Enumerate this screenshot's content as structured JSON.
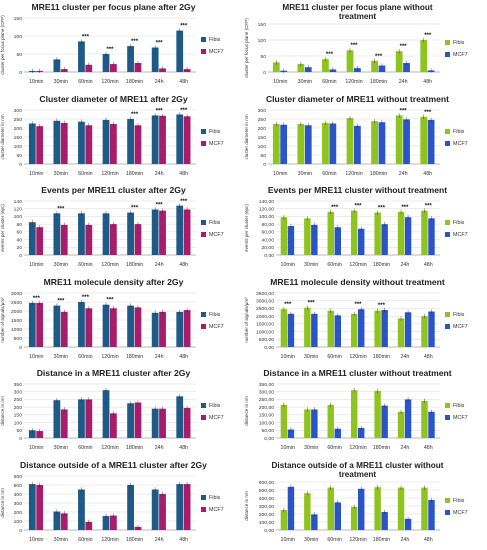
{
  "chart_data": [
    {
      "type": "bar",
      "title": "MRE11 cluster per focus plane after 2Gy",
      "ylabel": "cluster per focus plane (CFP)",
      "categories": [
        "10min",
        "30min",
        "60min",
        "120min",
        "180min",
        "24h",
        "48h"
      ],
      "ylim": [
        0,
        150
      ],
      "yticks": [
        "0",
        "50",
        "100",
        "150"
      ],
      "series": [
        {
          "name": "Fibis",
          "values": [
            3,
            35,
            85,
            50,
            72,
            68,
            115
          ],
          "color": "#1f5a86"
        },
        {
          "name": "MCF7",
          "values": [
            3,
            8,
            20,
            22,
            25,
            10,
            8
          ],
          "color": "#a51d6b"
        }
      ],
      "annotations": [
        "***",
        "***",
        "***",
        "***",
        "***"
      ]
    },
    {
      "type": "bar",
      "title": "MRE11 cluster per focus plane without treatment",
      "ylabel": "cluster per focus plane (CFP)",
      "categories": [
        "10min",
        "30min",
        "60min",
        "120min",
        "180min",
        "24h",
        "48h"
      ],
      "ylim": [
        0,
        150
      ],
      "yticks": [
        "0",
        "50",
        "100",
        "150"
      ],
      "series": [
        {
          "name": "Fibis",
          "values": [
            30,
            25,
            40,
            68,
            35,
            65,
            100
          ],
          "color": "#8fc31f"
        },
        {
          "name": "MCF7",
          "values": [
            4,
            15,
            8,
            12,
            20,
            28,
            5
          ],
          "color": "#2b54c8"
        }
      ],
      "annotations": [
        "***",
        "***",
        "***",
        "***",
        "***"
      ]
    },
    {
      "type": "bar",
      "title": "Cluster diameter of MRE11 after 2Gy",
      "ylabel": "cluster diameter in nm",
      "categories": [
        "10min",
        "30min",
        "60min",
        "120min",
        "180min",
        "24h",
        "48h"
      ],
      "ylim": [
        0,
        300
      ],
      "yticks": [
        "0",
        "50",
        "100",
        "150",
        "200",
        "250",
        "300"
      ],
      "series": [
        {
          "name": "Fibis",
          "values": [
            225,
            240,
            235,
            245,
            250,
            270,
            275
          ],
          "color": "#1f5a86"
        },
        {
          "name": "MCF7",
          "values": [
            210,
            228,
            215,
            222,
            215,
            268,
            265
          ],
          "color": "#a51d6b"
        }
      ],
      "annotations": [
        "***",
        "***",
        "***"
      ]
    },
    {
      "type": "bar",
      "title": "Cluster diameter of MRE11 without treatment",
      "ylabel": "cluster diameter in nm",
      "categories": [
        "10min",
        "30min",
        "60min",
        "120min",
        "180min",
        "24h",
        "48h"
      ],
      "ylim": [
        0,
        300
      ],
      "yticks": [
        "0",
        "50",
        "100",
        "150",
        "200",
        "250",
        "300"
      ],
      "series": [
        {
          "name": "Fibis",
          "values": [
            222,
            222,
            228,
            255,
            238,
            270,
            262
          ],
          "color": "#8fc31f"
        },
        {
          "name": "MCF7",
          "values": [
            218,
            215,
            225,
            212,
            232,
            248,
            245
          ],
          "color": "#2b54c8"
        }
      ],
      "annotations": [
        "***",
        "***"
      ]
    },
    {
      "type": "bar",
      "title": "Events per MRE11 cluster after 2Gy",
      "ylabel": "events per cluster (epc)",
      "categories": [
        "10min",
        "30min",
        "60min",
        "120min",
        "180min",
        "24h",
        "48h"
      ],
      "ylim": [
        0,
        140
      ],
      "yticks": [
        "0",
        "20",
        "40",
        "60",
        "80",
        "100",
        "120",
        "140"
      ],
      "series": [
        {
          "name": "Fibis",
          "values": [
            85,
            108,
            108,
            108,
            110,
            118,
            128
          ],
          "color": "#1f5a86"
        },
        {
          "name": "MCF7",
          "values": [
            72,
            78,
            78,
            80,
            80,
            115,
            118
          ],
          "color": "#a51d6b"
        }
      ],
      "annotations": [
        "***",
        "***",
        "***",
        "***"
      ]
    },
    {
      "type": "bar",
      "title": "Events per MRE11 cluster without treatment",
      "ylabel": "events per cluster (epc)",
      "categories": [
        "10min",
        "30min",
        "60min",
        "120min",
        "180min",
        "24h",
        "48h"
      ],
      "ylim": [
        0,
        140
      ],
      "yticks": [
        "0,00",
        "20,00",
        "40,00",
        "60,00",
        "80,00",
        "100,00",
        "120,00",
        "140,00"
      ],
      "series": [
        {
          "name": "Fibis",
          "values": [
            98,
            95,
            112,
            115,
            110,
            112,
            115
          ],
          "color": "#8fc31f"
        },
        {
          "name": "MCF7",
          "values": [
            75,
            78,
            72,
            68,
            80,
            98,
            95
          ],
          "color": "#2b54c8"
        }
      ],
      "annotations": [
        "***",
        "***",
        "***",
        "***",
        "***"
      ]
    },
    {
      "type": "bar",
      "title": "MRE11 molecule density after 2Gy",
      "ylabel": "number of signals/µm²",
      "categories": [
        "10min",
        "30min",
        "60min",
        "120min",
        "180min",
        "24h",
        "48h"
      ],
      "ylim": [
        0,
        3000
      ],
      "yticks": [
        "0",
        "500",
        "1000",
        "1500",
        "2000",
        "2500",
        "3000"
      ],
      "series": [
        {
          "name": "Fibis",
          "values": [
            2450,
            2300,
            2500,
            2350,
            2300,
            1900,
            1950
          ],
          "color": "#1f5a86"
        },
        {
          "name": "MCF7",
          "values": [
            2450,
            1950,
            2150,
            2150,
            2200,
            1950,
            2050
          ],
          "color": "#a51d6b"
        }
      ],
      "annotations": [
        "***",
        "***",
        "***",
        "***"
      ]
    },
    {
      "type": "bar",
      "title": "MRE11 molecule density without treatment",
      "ylabel": "number of signals/µm²",
      "categories": [
        "10min",
        "30min",
        "60min",
        "120min",
        "180min",
        "24h",
        "48h"
      ],
      "ylim": [
        0,
        3500
      ],
      "yticks": [
        "0,00",
        "500,00",
        "1000,00",
        "1500,00",
        "2000,00",
        "2500,00",
        "3000,00",
        "3500,00"
      ],
      "series": [
        {
          "name": "Fibis",
          "values": [
            2450,
            2550,
            2350,
            2150,
            2350,
            1850,
            2000
          ],
          "color": "#8fc31f"
        },
        {
          "name": "MCF7",
          "values": [
            2150,
            2150,
            2050,
            2450,
            2400,
            2250,
            2300
          ],
          "color": "#2b54c8"
        }
      ],
      "annotations": [
        "***",
        "***",
        "***",
        "***"
      ]
    },
    {
      "type": "bar",
      "title": "Distance in a MRE11 cluster after 2Gy",
      "ylabel": "distance in nm",
      "categories": [
        "10min",
        "30min",
        "60min",
        "120min",
        "180min",
        "24h",
        "48h"
      ],
      "ylim": [
        0,
        350
      ],
      "yticks": [
        "0",
        "50",
        "100",
        "150",
        "200",
        "250",
        "300",
        "350"
      ],
      "series": [
        {
          "name": "Fibis",
          "values": [
            50,
            245,
            250,
            310,
            225,
            190,
            270
          ],
          "color": "#1f5a86"
        },
        {
          "name": "MCF7",
          "values": [
            45,
            185,
            250,
            160,
            230,
            190,
            195
          ],
          "color": "#a51d6b"
        }
      ],
      "annotations": []
    },
    {
      "type": "bar",
      "title": "Distance in a MRE11 cluster without treatment",
      "ylabel": "distance in nm",
      "categories": [
        "10min",
        "30min",
        "60min",
        "120min",
        "180min",
        "24h",
        "48h"
      ],
      "ylim": [
        0,
        350
      ],
      "yticks": [
        "0,00",
        "50,00",
        "100,00",
        "150,00",
        "200,00",
        "250,00",
        "300,00",
        "350,00"
      ],
      "series": [
        {
          "name": "Fibis",
          "values": [
            215,
            185,
            215,
            310,
            305,
            170,
            240
          ],
          "color": "#8fc31f"
        },
        {
          "name": "MCF7",
          "values": [
            55,
            185,
            60,
            65,
            210,
            250,
            170
          ],
          "color": "#2b54c8"
        }
      ],
      "annotations": []
    },
    {
      "type": "bar",
      "title": "Distance outside of a MRE11 cluster after 2Gy",
      "ylabel": "distance in nm",
      "categories": [
        "10min",
        "30min",
        "60min",
        "120min",
        "180min",
        "24h",
        "48h"
      ],
      "ylim": [
        0,
        600
      ],
      "yticks": [
        "0",
        "100",
        "200",
        "300",
        "400",
        "500",
        "600"
      ],
      "series": [
        {
          "name": "Fibis",
          "values": [
            510,
            205,
            450,
            155,
            500,
            450,
            510
          ],
          "color": "#1f5a86"
        },
        {
          "name": "MCF7",
          "values": [
            500,
            185,
            90,
            160,
            35,
            400,
            510
          ],
          "color": "#a51d6b"
        }
      ],
      "annotations": []
    },
    {
      "type": "bar",
      "title": "Distance outside of a MRE11 cluster without treatment",
      "ylabel": "distance in nm",
      "categories": [
        "10min",
        "30min",
        "60min",
        "120min",
        "180min",
        "24h",
        "48h"
      ],
      "ylim": [
        0,
        600
      ],
      "yticks": [
        "0,00",
        "100,00",
        "200,00",
        "300,00",
        "400,00",
        "500,00",
        "600,00"
      ],
      "series": [
        {
          "name": "Fibis",
          "values": [
            250,
            460,
            530,
            290,
            535,
            530,
            530
          ],
          "color": "#8fc31f"
        },
        {
          "name": "MCF7",
          "values": [
            540,
            195,
            345,
            515,
            225,
            140,
            375
          ],
          "color": "#2b54c8"
        }
      ],
      "annotations": []
    }
  ]
}
